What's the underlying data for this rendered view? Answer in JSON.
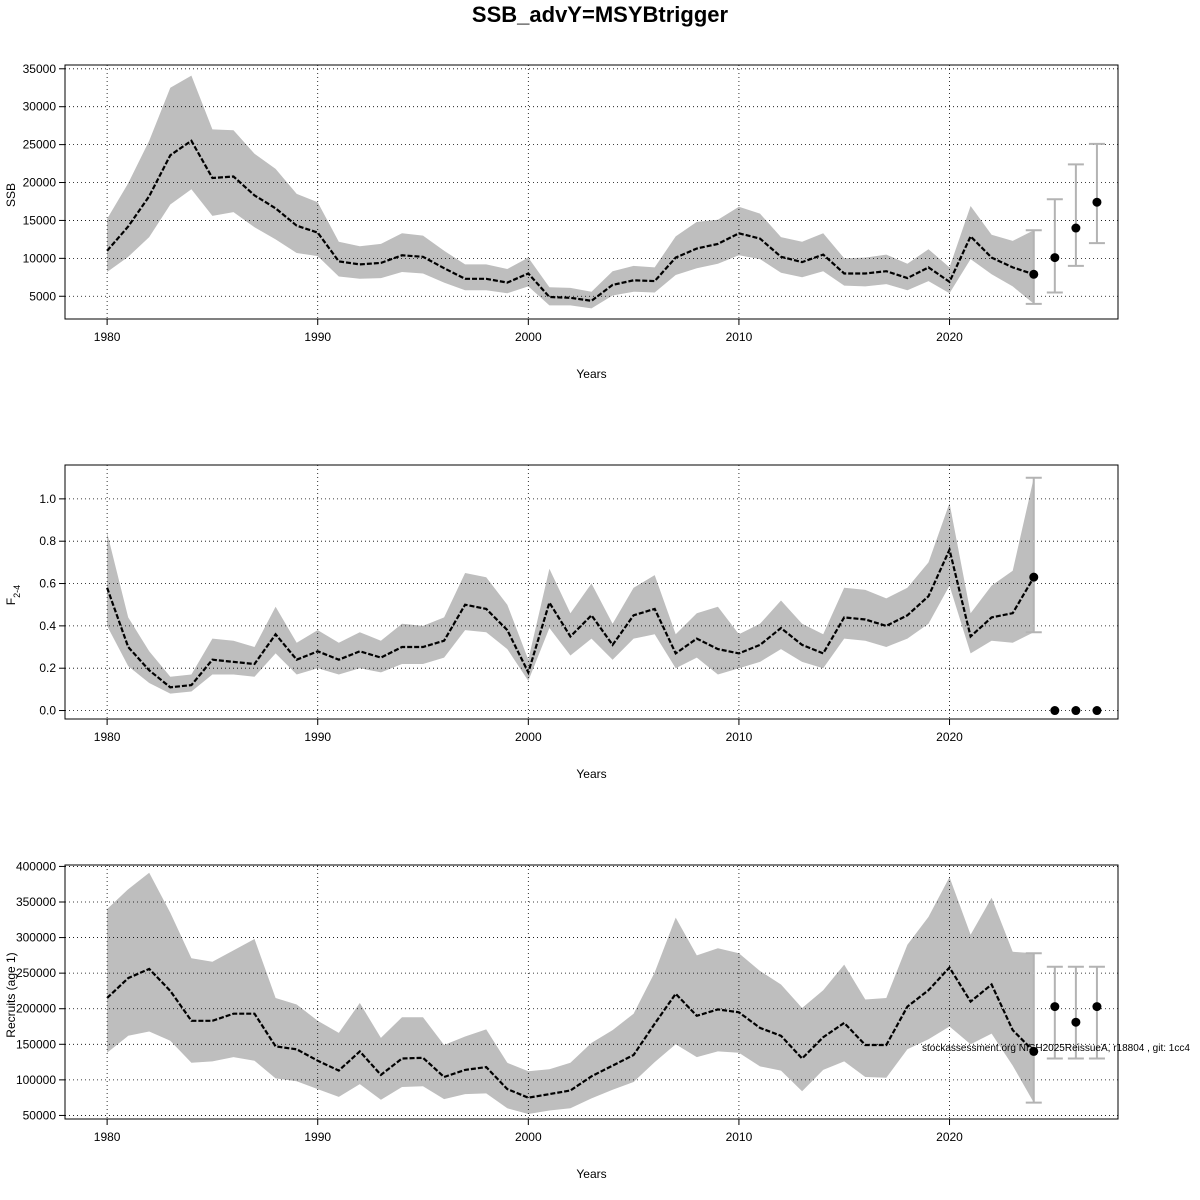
{
  "page": {
    "title": "SSB_advY=MSYBtrigger"
  },
  "footnote": "stockassessment.org NISH2025ReissueA, r18804 , git: 1cc4",
  "colors": {
    "band": "#bebebe",
    "line": "#000000",
    "grid": "#000000",
    "errorbar": "#b3b3b3"
  },
  "chart_data": [
    {
      "type": "line",
      "xlabel": "Years",
      "ylabel": "SSB",
      "xlim": [
        1978,
        2028
      ],
      "ylim": [
        2000,
        35500
      ],
      "xticks": [
        1980,
        1990,
        2000,
        2010,
        2020
      ],
      "yticks": [
        5000,
        10000,
        15000,
        20000,
        25000,
        30000,
        35000
      ],
      "ytick_labels": [
        "5000",
        "10000",
        "15000",
        "20000",
        "25000",
        "30000",
        "35000"
      ],
      "grid": true,
      "x": [
        1980,
        1981,
        1982,
        1983,
        1984,
        1985,
        1986,
        1987,
        1988,
        1989,
        1990,
        1991,
        1992,
        1993,
        1994,
        1995,
        1996,
        1997,
        1998,
        1999,
        2000,
        2001,
        2002,
        2003,
        2004,
        2005,
        2006,
        2007,
        2008,
        2009,
        2010,
        2011,
        2012,
        2013,
        2014,
        2015,
        2016,
        2017,
        2018,
        2019,
        2020,
        2021,
        2022,
        2023,
        2024
      ],
      "estimate": [
        11000,
        14200,
        18200,
        23600,
        25500,
        20600,
        20800,
        18300,
        16600,
        14300,
        13400,
        9600,
        9200,
        9400,
        10400,
        10200,
        8700,
        7300,
        7300,
        6800,
        8000,
        4900,
        4800,
        4400,
        6500,
        7100,
        7000,
        10100,
        11300,
        11900,
        13300,
        12600,
        10200,
        9500,
        10500,
        8000,
        8000,
        8300,
        7400,
        8800,
        6900,
        12900,
        10100,
        8800,
        7900
      ],
      "lower": [
        8200,
        10200,
        12800,
        17100,
        19100,
        15600,
        16100,
        14100,
        12500,
        10700,
        10300,
        7600,
        7300,
        7400,
        8200,
        8000,
        6800,
        5800,
        5800,
        5400,
        6300,
        3800,
        3800,
        3400,
        5100,
        5600,
        5500,
        7800,
        8700,
        9300,
        10400,
        9900,
        8100,
        7500,
        8300,
        6400,
        6300,
        6600,
        5800,
        7000,
        5400,
        9900,
        7900,
        6300,
        4000
      ],
      "upper": [
        15200,
        19900,
        25500,
        32500,
        34100,
        27000,
        26900,
        23800,
        21800,
        18500,
        17400,
        12200,
        11600,
        11900,
        13300,
        13000,
        11000,
        9200,
        9200,
        8600,
        10100,
        6200,
        6100,
        5600,
        8300,
        9000,
        8800,
        12900,
        14800,
        15100,
        16800,
        15900,
        12800,
        12200,
        13300,
        10000,
        10100,
        10500,
        9300,
        11200,
        8800,
        16900,
        13100,
        12300,
        13700
      ],
      "forecast": [
        {
          "x": 2024,
          "value": 7900,
          "low": 4000,
          "high": 13700
        },
        {
          "x": 2025,
          "value": 10100,
          "low": 5500,
          "high": 17800
        },
        {
          "x": 2026,
          "value": 14000,
          "low": 9000,
          "high": 22400
        },
        {
          "x": 2027,
          "value": 17400,
          "low": 12000,
          "high": 25100
        }
      ]
    },
    {
      "type": "line",
      "xlabel": "Years",
      "ylabel": "F",
      "ylabel_subscript": "2-4",
      "xlim": [
        1978,
        2028
      ],
      "ylim": [
        -0.04,
        1.16
      ],
      "xticks": [
        1980,
        1990,
        2000,
        2010,
        2020
      ],
      "yticks": [
        0.0,
        0.2,
        0.4,
        0.6,
        0.8,
        1.0
      ],
      "ytick_labels": [
        "0.0",
        "0.2",
        "0.4",
        "0.6",
        "0.8",
        "1.0"
      ],
      "grid": true,
      "x": [
        1980,
        1981,
        1982,
        1983,
        1984,
        1985,
        1986,
        1987,
        1988,
        1989,
        1990,
        1991,
        1992,
        1993,
        1994,
        1995,
        1996,
        1997,
        1998,
        1999,
        2000,
        2001,
        2002,
        2003,
        2004,
        2005,
        2006,
        2007,
        2008,
        2009,
        2010,
        2011,
        2012,
        2013,
        2014,
        2015,
        2016,
        2017,
        2018,
        2019,
        2020,
        2021,
        2022,
        2023,
        2024
      ],
      "estimate": [
        0.58,
        0.3,
        0.19,
        0.11,
        0.12,
        0.24,
        0.23,
        0.22,
        0.36,
        0.24,
        0.28,
        0.24,
        0.28,
        0.25,
        0.3,
        0.3,
        0.33,
        0.5,
        0.48,
        0.38,
        0.18,
        0.51,
        0.35,
        0.45,
        0.31,
        0.45,
        0.48,
        0.27,
        0.34,
        0.29,
        0.27,
        0.31,
        0.39,
        0.31,
        0.27,
        0.44,
        0.43,
        0.4,
        0.45,
        0.54,
        0.76,
        0.35,
        0.44,
        0.46,
        0.63
      ],
      "lower": [
        0.4,
        0.21,
        0.13,
        0.08,
        0.09,
        0.17,
        0.17,
        0.16,
        0.27,
        0.17,
        0.2,
        0.17,
        0.2,
        0.18,
        0.22,
        0.22,
        0.25,
        0.38,
        0.37,
        0.29,
        0.14,
        0.39,
        0.26,
        0.34,
        0.24,
        0.34,
        0.36,
        0.2,
        0.25,
        0.17,
        0.2,
        0.23,
        0.29,
        0.23,
        0.2,
        0.34,
        0.33,
        0.3,
        0.34,
        0.41,
        0.59,
        0.27,
        0.33,
        0.32,
        0.37
      ],
      "upper": [
        0.84,
        0.44,
        0.28,
        0.16,
        0.17,
        0.34,
        0.33,
        0.3,
        0.49,
        0.32,
        0.38,
        0.32,
        0.37,
        0.33,
        0.41,
        0.4,
        0.44,
        0.65,
        0.63,
        0.5,
        0.24,
        0.67,
        0.46,
        0.6,
        0.41,
        0.58,
        0.64,
        0.36,
        0.46,
        0.49,
        0.36,
        0.41,
        0.52,
        0.41,
        0.36,
        0.58,
        0.57,
        0.53,
        0.58,
        0.7,
        0.98,
        0.46,
        0.59,
        0.66,
        1.1
      ],
      "forecast": [
        {
          "x": 2024,
          "value": 0.63,
          "low": 0.37,
          "high": 1.1
        },
        {
          "x": 2025,
          "value": 0.0
        },
        {
          "x": 2026,
          "value": 0.0
        },
        {
          "x": 2027,
          "value": 0.0
        }
      ]
    },
    {
      "type": "line",
      "xlabel": "Years",
      "ylabel": "Recruits (age 1)",
      "xlim": [
        1978,
        2028
      ],
      "ylim": [
        45000,
        402000
      ],
      "xticks": [
        1980,
        1990,
        2000,
        2010,
        2020
      ],
      "yticks": [
        50000,
        100000,
        150000,
        200000,
        250000,
        300000,
        350000,
        400000
      ],
      "ytick_labels": [
        "50000",
        "100000",
        "150000",
        "200000",
        "250000",
        "300000",
        "350000",
        "400000"
      ],
      "grid": true,
      "x": [
        1980,
        1981,
        1982,
        1983,
        1984,
        1985,
        1986,
        1987,
        1988,
        1989,
        1990,
        1991,
        1992,
        1993,
        1994,
        1995,
        1996,
        1997,
        1998,
        1999,
        2000,
        2001,
        2002,
        2003,
        2004,
        2005,
        2006,
        2007,
        2008,
        2009,
        2010,
        2011,
        2012,
        2013,
        2014,
        2015,
        2016,
        2017,
        2018,
        2019,
        2020,
        2021,
        2022,
        2023,
        2024
      ],
      "estimate": [
        215000,
        243000,
        256000,
        225000,
        183000,
        183000,
        193000,
        193000,
        147000,
        143000,
        127000,
        113000,
        140000,
        107000,
        130000,
        131000,
        104000,
        114000,
        118000,
        87000,
        75000,
        80000,
        85000,
        105000,
        120000,
        135000,
        179000,
        221000,
        190000,
        199000,
        195000,
        173000,
        162000,
        130000,
        160000,
        180000,
        149000,
        149000,
        203000,
        226000,
        258000,
        210000,
        234000,
        170000,
        140000
      ],
      "lower": [
        138000,
        162000,
        168000,
        155000,
        124000,
        126000,
        132000,
        127000,
        102000,
        98000,
        87000,
        76000,
        94000,
        72000,
        90000,
        91000,
        73000,
        80000,
        81000,
        60000,
        52000,
        57000,
        60000,
        74000,
        86000,
        97000,
        125000,
        150000,
        132000,
        140000,
        138000,
        119000,
        113000,
        84000,
        114000,
        126000,
        104000,
        103000,
        143000,
        157000,
        175000,
        150000,
        165000,
        120000,
        68000
      ],
      "upper": [
        340000,
        368000,
        391000,
        335000,
        271000,
        266000,
        282000,
        298000,
        215000,
        206000,
        183000,
        166000,
        208000,
        159000,
        188000,
        188000,
        149000,
        161000,
        171000,
        124000,
        112000,
        115000,
        124000,
        152000,
        170000,
        193000,
        251000,
        328000,
        275000,
        285000,
        278000,
        253000,
        234000,
        201000,
        226000,
        262000,
        213000,
        215000,
        290000,
        329000,
        385000,
        304000,
        356000,
        280000,
        278000
      ],
      "forecast": [
        {
          "x": 2024,
          "value": 140000,
          "low": 68000,
          "high": 278000
        },
        {
          "x": 2025,
          "value": 203000,
          "low": 130000,
          "high": 259000
        },
        {
          "x": 2026,
          "value": 181000,
          "low": 130000,
          "high": 259000
        },
        {
          "x": 2027,
          "value": 203000,
          "low": 130000,
          "high": 259000
        }
      ]
    }
  ]
}
